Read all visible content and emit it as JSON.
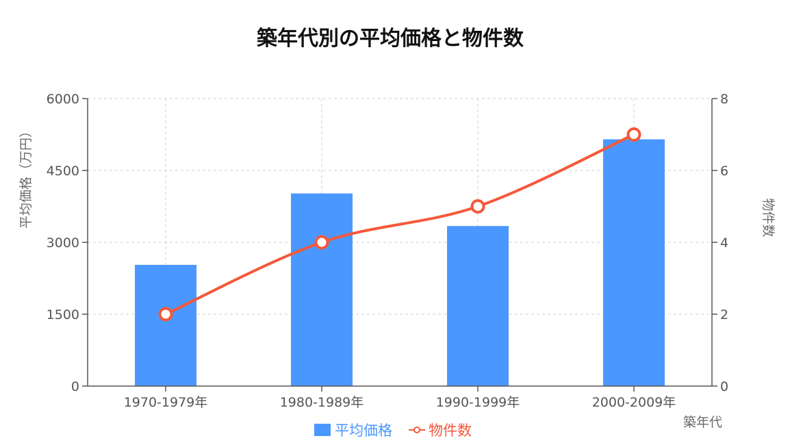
{
  "chart_data": {
    "type": "bar",
    "title": "築年代別の平均価格と物件数",
    "xlabel": "築年代",
    "ylabel": "平均価格（万円）",
    "y2label": "物件数",
    "categories": [
      "1970-1979年",
      "1980-1989年",
      "1990-1999年",
      "2000-2009年"
    ],
    "series": [
      {
        "name": "平均価格",
        "type": "bar",
        "axis": "left",
        "color": "#4a98ff",
        "values": [
          2530,
          4020,
          3340,
          5150
        ]
      },
      {
        "name": "物件数",
        "type": "line",
        "axis": "right",
        "color": "#f5583a",
        "values": [
          2,
          4,
          5,
          7
        ]
      }
    ],
    "ylim": [
      0,
      6000
    ],
    "y_ticks": [
      0,
      1500,
      3000,
      4500,
      6000
    ],
    "y2lim": [
      0,
      8
    ],
    "y2_ticks": [
      0,
      2,
      4,
      6,
      8
    ],
    "grid": true,
    "legend_position": "bottom"
  }
}
